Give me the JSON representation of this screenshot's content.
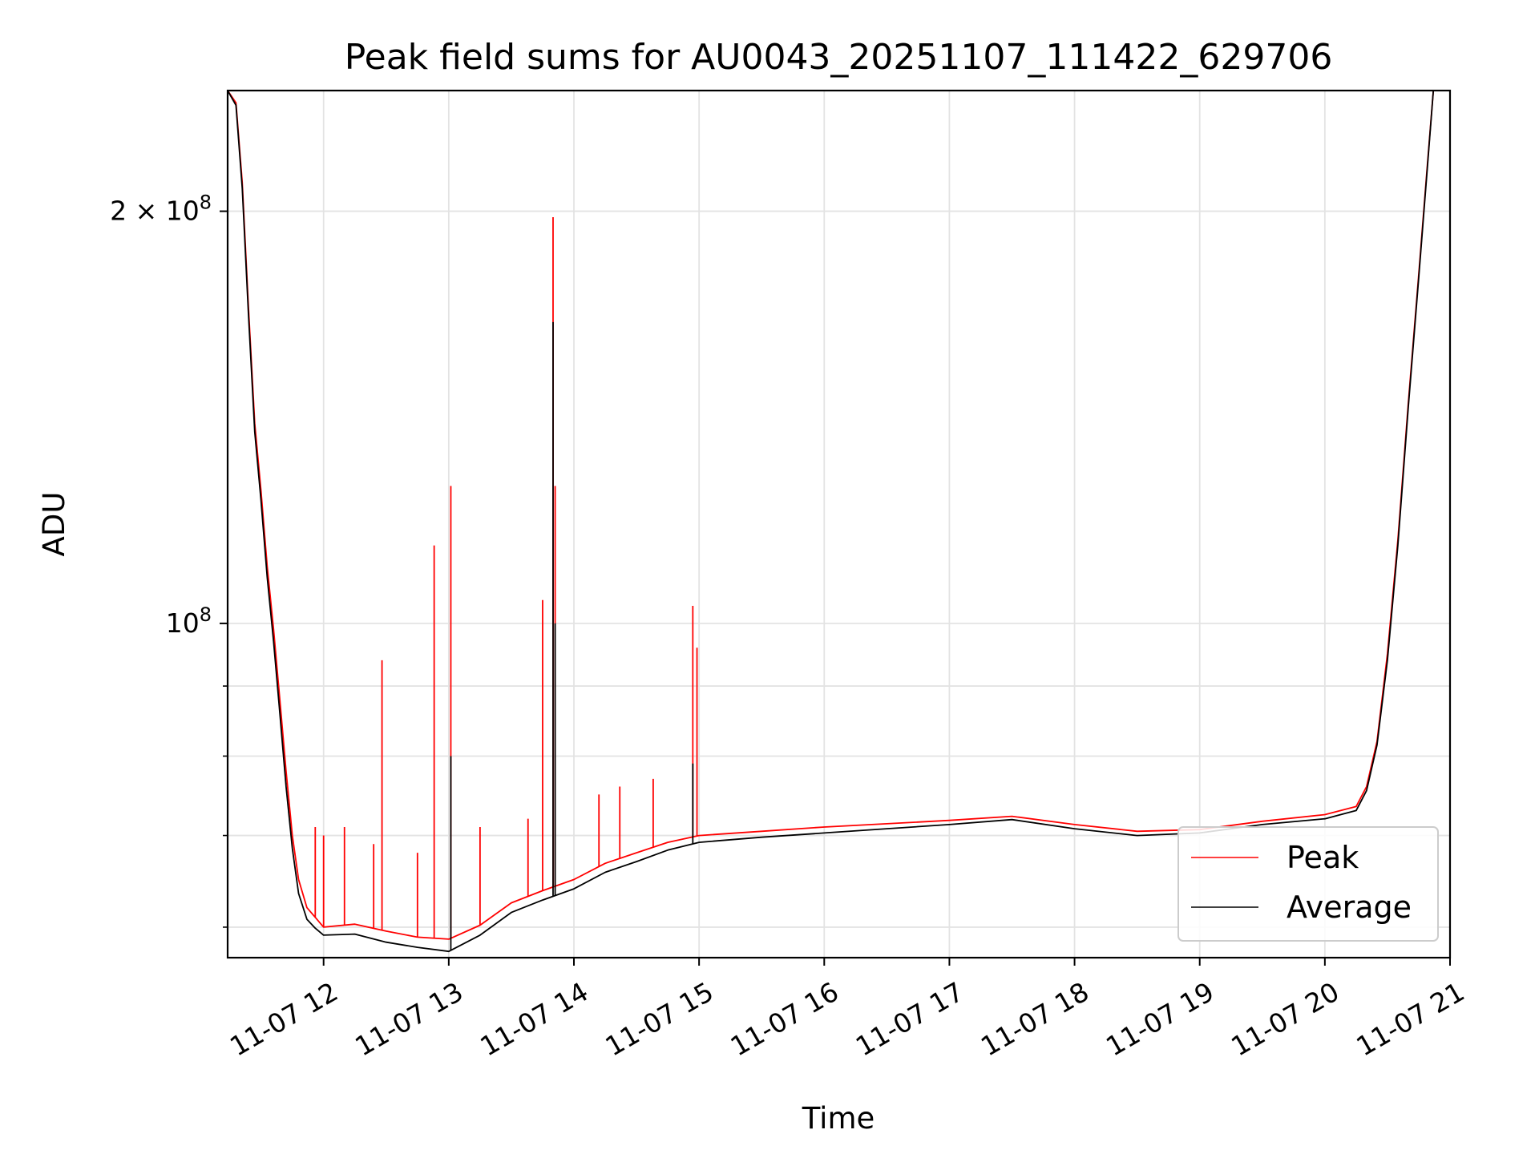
{
  "chart_data": {
    "type": "line",
    "title": "Peak field sums for AU0043_20251107_111422_629706",
    "xlabel": "Time",
    "ylabel": "ADU",
    "x_range": [
      "2025-11-07 11:14",
      "2025-11-07 21:00"
    ],
    "y_scale": "log",
    "ylim": [
      57000000,
      245000000
    ],
    "grid": true,
    "legend_position": "lower-right",
    "x_ticks": [
      {
        "time": "2025-11-07 12:00",
        "label": "11-07 12"
      },
      {
        "time": "2025-11-07 13:00",
        "label": "11-07 13"
      },
      {
        "time": "2025-11-07 14:00",
        "label": "11-07 14"
      },
      {
        "time": "2025-11-07 15:00",
        "label": "11-07 15"
      },
      {
        "time": "2025-11-07 16:00",
        "label": "11-07 16"
      },
      {
        "time": "2025-11-07 17:00",
        "label": "11-07 17"
      },
      {
        "time": "2025-11-07 18:00",
        "label": "11-07 18"
      },
      {
        "time": "2025-11-07 19:00",
        "label": "11-07 19"
      },
      {
        "time": "2025-11-07 20:00",
        "label": "11-07 20"
      },
      {
        "time": "2025-11-07 21:00",
        "label": "11-07 21"
      }
    ],
    "y_major_ticks": [
      {
        "value": 100000000,
        "base": "10",
        "exp": "8"
      },
      {
        "value": 200000000,
        "base": "2 × 10",
        "exp": "8"
      }
    ],
    "y_minor_ticks": [
      60000000,
      70000000,
      80000000,
      90000000
    ],
    "series": [
      {
        "name": "Peak",
        "color": "#ff0000",
        "points": [
          [
            "2025-11-07 11:14",
            245000000
          ],
          [
            "2025-11-07 11:18",
            240000000
          ],
          [
            "2025-11-07 11:21",
            210000000
          ],
          [
            "2025-11-07 11:24",
            170000000
          ],
          [
            "2025-11-07 11:27",
            140000000
          ],
          [
            "2025-11-07 11:30",
            125000000
          ],
          [
            "2025-11-07 11:33",
            110000000
          ],
          [
            "2025-11-07 11:36",
            99000000
          ],
          [
            "2025-11-07 11:39",
            88000000
          ],
          [
            "2025-11-07 11:42",
            78000000
          ],
          [
            "2025-11-07 11:45",
            70000000
          ],
          [
            "2025-11-07 11:48",
            65000000
          ],
          [
            "2025-11-07 11:52",
            62000000
          ],
          [
            "2025-11-07 11:56",
            61000000
          ],
          [
            "2025-11-07 12:00",
            60000000
          ],
          [
            "2025-11-07 12:15",
            60300000
          ],
          [
            "2025-11-07 12:30",
            59600000
          ],
          [
            "2025-11-07 12:45",
            59000000
          ],
          [
            "2025-11-07 13:00",
            58800000
          ],
          [
            "2025-11-07 13:15",
            60200000
          ],
          [
            "2025-11-07 13:30",
            62500000
          ],
          [
            "2025-11-07 13:45",
            63800000
          ],
          [
            "2025-11-07 14:00",
            65000000
          ],
          [
            "2025-11-07 14:15",
            66800000
          ],
          [
            "2025-11-07 14:30",
            68000000
          ],
          [
            "2025-11-07 14:45",
            69200000
          ],
          [
            "2025-11-07 15:00",
            70000000
          ],
          [
            "2025-11-07 15:30",
            70500000
          ],
          [
            "2025-11-07 16:00",
            71000000
          ],
          [
            "2025-11-07 16:30",
            71400000
          ],
          [
            "2025-11-07 17:00",
            71800000
          ],
          [
            "2025-11-07 17:30",
            72300000
          ],
          [
            "2025-11-07 18:00",
            71300000
          ],
          [
            "2025-11-07 18:30",
            70500000
          ],
          [
            "2025-11-07 19:00",
            70700000
          ],
          [
            "2025-11-07 19:30",
            71700000
          ],
          [
            "2025-11-07 20:00",
            72500000
          ],
          [
            "2025-11-07 20:15",
            73500000
          ],
          [
            "2025-11-07 20:20",
            76000000
          ],
          [
            "2025-11-07 20:25",
            82000000
          ],
          [
            "2025-11-07 20:30",
            95000000
          ],
          [
            "2025-11-07 20:35",
            115000000
          ],
          [
            "2025-11-07 20:40",
            145000000
          ],
          [
            "2025-11-07 20:45",
            180000000
          ],
          [
            "2025-11-07 20:49",
            215000000
          ],
          [
            "2025-11-07 20:52",
            245000000
          ]
        ],
        "spikes": [
          [
            "2025-11-07 11:56",
            71000000
          ],
          [
            "2025-11-07 12:00",
            70000000
          ],
          [
            "2025-11-07 12:10",
            71000000
          ],
          [
            "2025-11-07 12:24",
            69000000
          ],
          [
            "2025-11-07 12:28",
            94000000
          ],
          [
            "2025-11-07 12:45",
            68000000
          ],
          [
            "2025-11-07 12:53",
            114000000
          ],
          [
            "2025-11-07 13:01",
            126000000
          ],
          [
            "2025-11-07 13:15",
            71000000
          ],
          [
            "2025-11-07 13:38",
            72000000
          ],
          [
            "2025-11-07 13:45",
            104000000
          ],
          [
            "2025-11-07 13:50",
            198000000
          ],
          [
            "2025-11-07 13:51",
            126000000
          ],
          [
            "2025-11-07 14:12",
            75000000
          ],
          [
            "2025-11-07 14:22",
            76000000
          ],
          [
            "2025-11-07 14:38",
            77000000
          ],
          [
            "2025-11-07 14:57",
            103000000
          ],
          [
            "2025-11-07 14:59",
            96000000
          ]
        ]
      },
      {
        "name": "Average",
        "color": "#000000",
        "points": [
          [
            "2025-11-07 11:14",
            245000000
          ],
          [
            "2025-11-07 11:18",
            239000000
          ],
          [
            "2025-11-07 11:21",
            208000000
          ],
          [
            "2025-11-07 11:24",
            168000000
          ],
          [
            "2025-11-07 11:27",
            138000000
          ],
          [
            "2025-11-07 11:30",
            123000000
          ],
          [
            "2025-11-07 11:33",
            108000000
          ],
          [
            "2025-11-07 11:36",
            97000000
          ],
          [
            "2025-11-07 11:39",
            86000000
          ],
          [
            "2025-11-07 11:42",
            76000000
          ],
          [
            "2025-11-07 11:45",
            68500000
          ],
          [
            "2025-11-07 11:48",
            63500000
          ],
          [
            "2025-11-07 11:52",
            60800000
          ],
          [
            "2025-11-07 11:56",
            59900000
          ],
          [
            "2025-11-07 12:00",
            59200000
          ],
          [
            "2025-11-07 12:15",
            59300000
          ],
          [
            "2025-11-07 12:30",
            58500000
          ],
          [
            "2025-11-07 12:45",
            58000000
          ],
          [
            "2025-11-07 13:00",
            57600000
          ],
          [
            "2025-11-07 13:15",
            59200000
          ],
          [
            "2025-11-07 13:30",
            61500000
          ],
          [
            "2025-11-07 13:45",
            62800000
          ],
          [
            "2025-11-07 14:00",
            64000000
          ],
          [
            "2025-11-07 14:15",
            65800000
          ],
          [
            "2025-11-07 14:30",
            67000000
          ],
          [
            "2025-11-07 14:45",
            68300000
          ],
          [
            "2025-11-07 15:00",
            69200000
          ],
          [
            "2025-11-07 15:30",
            69800000
          ],
          [
            "2025-11-07 16:00",
            70300000
          ],
          [
            "2025-11-07 16:30",
            70800000
          ],
          [
            "2025-11-07 17:00",
            71300000
          ],
          [
            "2025-11-07 17:30",
            71900000
          ],
          [
            "2025-11-07 18:00",
            70800000
          ],
          [
            "2025-11-07 18:30",
            70000000
          ],
          [
            "2025-11-07 19:00",
            70300000
          ],
          [
            "2025-11-07 19:30",
            71300000
          ],
          [
            "2025-11-07 20:00",
            72000000
          ],
          [
            "2025-11-07 20:15",
            73000000
          ],
          [
            "2025-11-07 20:20",
            75500000
          ],
          [
            "2025-11-07 20:25",
            81500000
          ],
          [
            "2025-11-07 20:30",
            94000000
          ],
          [
            "2025-11-07 20:35",
            114000000
          ],
          [
            "2025-11-07 20:40",
            144000000
          ],
          [
            "2025-11-07 20:45",
            179000000
          ],
          [
            "2025-11-07 20:49",
            214000000
          ],
          [
            "2025-11-07 20:52",
            245000000
          ]
        ],
        "spikes": [
          [
            "2025-11-07 13:01",
            80000000
          ],
          [
            "2025-11-07 13:50",
            166000000
          ],
          [
            "2025-11-07 13:51",
            100000000
          ],
          [
            "2025-11-07 14:57",
            79000000
          ]
        ]
      }
    ]
  }
}
